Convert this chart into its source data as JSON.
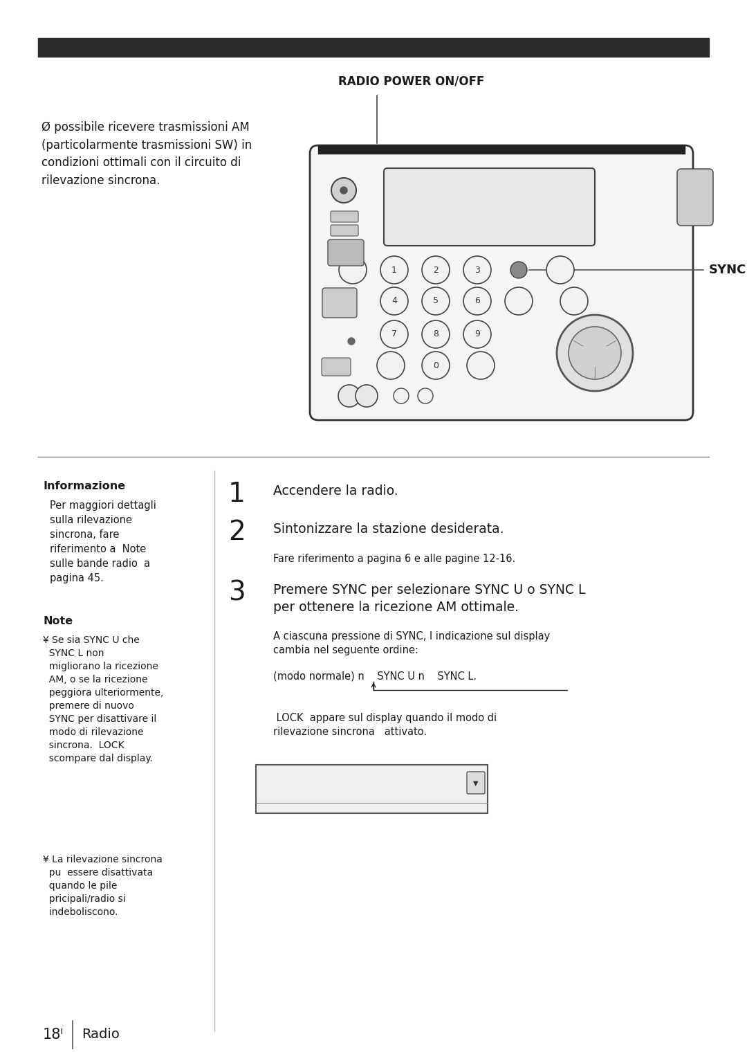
{
  "bg_color": "#ffffff",
  "text_color": "#1a1a1a",
  "top_bar_color": "#2a2a2a",
  "separator_color": "#888888",
  "title_label": "RADIO POWER ON/OFF",
  "sync_label": "SYNC",
  "intro_text": "Ø possibile ricevere trasmissioni AM\n(particolarmente trasmissioni SW) in\ncondizioni ottimali con il circuito di\nrilevazione sincrona.",
  "info_title": "Informazione",
  "info_body": "Per maggiori dettagli\nsulla rilevazione\nsincrona, fare\nriferimento a  Note\nsulle bande radio  a\npagina 45.",
  "note_title": "Note",
  "note_body1": "¥ Se sia SYNC U che\n  SYNC L non\n  migliorano la ricezione\n  AM, o se la ricezione\n  peggiora ulteriormente,\n  premere di nuovo\n  SYNC per disattivare il\n  modo di rilevazione\n  sincrona.  LOCK\n  scompare dal display.",
  "note_body2": "¥ La rilevazione sincrona\n  pu  essere disattivata\n  quando le pile\n  pricipali/radio si\n  indeboliscono.",
  "step1": "Accendere la radio.",
  "step2": "Sintonizzare la stazione desiderata.",
  "step2_note": "Fare riferimento a pagina 6 e alle pagine 12-16.",
  "step3": "Premere SYNC per selezionare SYNC U o SYNC L\nper ottenere la ricezione AM ottimale.",
  "step3_note1": "A ciascuna pressione di SYNC, l indicazione sul display\ncambia nel seguente ordine:",
  "step3_note2": "(modo normale) n    SYNC U n    SYNC L.",
  "step3_note3": " LOCK  appare sul display quando il modo di\nrilevazione sincrona   attivato.",
  "footer_page": "18ⁱ",
  "footer_label": "Radio"
}
